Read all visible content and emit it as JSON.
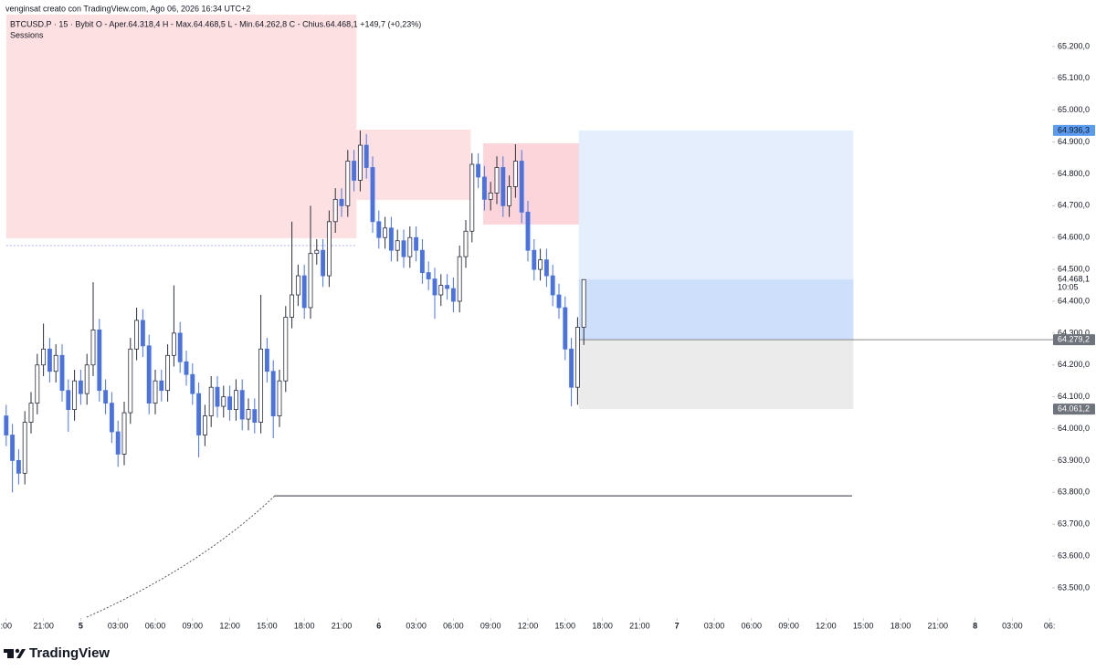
{
  "header": {
    "attribution": "venginsat creato con TradingView.com, Ago 06, 2026 16:34 UTC+2",
    "symbol_line": "BTCUSD.P · 15 · Bybit   O - Aper.64.318,4   H - Max.64.468,5   L - Min.64.262,8   C - Chius.64.468,1   +149,7 (+0,23%)",
    "indicator": "Sessions"
  },
  "footer": {
    "brand": "TradingView"
  },
  "chart_data": {
    "type": "candlestick",
    "up_color": "#ffffff",
    "up_border": "#2a2e39",
    "down_color": "#4a73e0",
    "xlim": [
      -0.5,
      84.06
    ],
    "ylim": [
      63411,
      65346
    ],
    "xticks": [
      {
        "value": 0,
        "label": ":00"
      },
      {
        "value": 3,
        "label": "21:00"
      },
      {
        "value": 6,
        "label": "5"
      },
      {
        "value": 9,
        "label": "03:00"
      },
      {
        "value": 12,
        "label": "06:00"
      },
      {
        "value": 15,
        "label": "09:00"
      },
      {
        "value": 18,
        "label": "12:00"
      },
      {
        "value": 21,
        "label": "15:00"
      },
      {
        "value": 24,
        "label": "18:00"
      },
      {
        "value": 27,
        "label": "21:00"
      },
      {
        "value": 30,
        "label": "6"
      },
      {
        "value": 33,
        "label": "03:00"
      },
      {
        "value": 36,
        "label": "06:00"
      },
      {
        "value": 39,
        "label": "09:00"
      },
      {
        "value": 42,
        "label": "12:00"
      },
      {
        "value": 45,
        "label": "15:00"
      },
      {
        "value": 48,
        "label": "18:00"
      },
      {
        "value": 51,
        "label": "21:00"
      },
      {
        "value": 54,
        "label": "7"
      },
      {
        "value": 57,
        "label": "03:00"
      },
      {
        "value": 60,
        "label": "06:00"
      },
      {
        "value": 63,
        "label": "09:00"
      },
      {
        "value": 66,
        "label": "12:00"
      },
      {
        "value": 69,
        "label": "15:00"
      },
      {
        "value": 72,
        "label": "18:00"
      },
      {
        "value": 75,
        "label": "21:00"
      },
      {
        "value": 78,
        "label": "8"
      },
      {
        "value": 81,
        "label": "03:00"
      },
      {
        "value": 84,
        "label": "06:"
      }
    ],
    "yticks": [
      {
        "value": 63500,
        "label": "63.500,0"
      },
      {
        "value": 63600,
        "label": "63.600,0"
      },
      {
        "value": 63700,
        "label": "63.700,0"
      },
      {
        "value": 63800,
        "label": "63.800,0"
      },
      {
        "value": 63900,
        "label": "63.900,0"
      },
      {
        "value": 64000,
        "label": "64.000,0"
      },
      {
        "value": 64100,
        "label": "64.100,0"
      },
      {
        "value": 64200,
        "label": "64.200,0"
      },
      {
        "value": 64300,
        "label": "64.300,0"
      },
      {
        "value": 64400,
        "label": "64.400,0"
      },
      {
        "value": 64500,
        "label": "64.500,0"
      },
      {
        "value": 64600,
        "label": "64.600,0"
      },
      {
        "value": 64700,
        "label": "64.700,0"
      },
      {
        "value": 64800,
        "label": "64.800,0"
      },
      {
        "value": 64900,
        "label": "64.900,0"
      },
      {
        "value": 65000,
        "label": "65.000,0"
      },
      {
        "value": 65100,
        "label": "65.100,0"
      },
      {
        "value": 65200,
        "label": "65.200,0"
      }
    ],
    "zones": [
      {
        "start": 0,
        "end": 28.2,
        "top": 65300,
        "bottom": 64598,
        "color": "#fde0e2"
      },
      {
        "start": 28.2,
        "end": 37.4,
        "top": 64939,
        "bottom": 64718,
        "color": "#fde0e2"
      },
      {
        "start": 38.4,
        "end": 67.1,
        "top": 64896,
        "bottom": 64641,
        "color": "#fbd5da"
      }
    ],
    "position": {
      "start": 46.1,
      "end": 68.2,
      "target": 64936.3,
      "entry": 64279.2,
      "stop": 64061.2,
      "target_color": "#e4eefd",
      "profit_color": "#cddffb",
      "stop_color": "#ebebeb"
    },
    "levels": [
      {
        "value": 63789,
        "start": 21.6,
        "end": 68.1,
        "color": "#2a2e39",
        "dashed": false
      },
      {
        "value": 64575,
        "start": 0,
        "end": 28.2,
        "color": "#a9b3e0",
        "dashed": true
      }
    ],
    "price_labels": [
      {
        "value": 64936.3,
        "label": "64.936,3",
        "bg": "#5b9cf0",
        "fg": "#131722"
      },
      {
        "value": 64468.1,
        "label": "64.468,1",
        "sub": "10:05",
        "bg": "#ffffff",
        "fg": "#131722"
      },
      {
        "value": 64279.2,
        "label": "64.279,2",
        "bg": "#6f737c",
        "fg": "#ffffff"
      },
      {
        "value": 64061.2,
        "label": "64.061,2",
        "bg": "#6f737c",
        "fg": "#ffffff"
      }
    ],
    "x": [
      0,
      0.5,
      1,
      1.5,
      2,
      2.5,
      3,
      3.5,
      4,
      4.5,
      5,
      5.5,
      6,
      6.5,
      7,
      7.5,
      8,
      8.5,
      9,
      9.5,
      10,
      10.5,
      11,
      11.5,
      12,
      12.5,
      13,
      13.5,
      14,
      14.5,
      15,
      15.5,
      16,
      16.5,
      17,
      17.5,
      18,
      18.5,
      19,
      19.5,
      20,
      20.5,
      21,
      21.5,
      22,
      22.5,
      23,
      23.5,
      24,
      24.5,
      25,
      25.5,
      26,
      26.5,
      27,
      27.5,
      28,
      28.5,
      29,
      29.5,
      30,
      30.5,
      31,
      31.5,
      32,
      32.5,
      33,
      33.5,
      34,
      34.5,
      35,
      35.5,
      36,
      36.5,
      37,
      37.5,
      38,
      38.5,
      39,
      39.5,
      40,
      40.5,
      41,
      41.5,
      42,
      42.5,
      43,
      43.5,
      44,
      44.5,
      45,
      45.5,
      46,
      46.5
    ],
    "open": [
      64040,
      63980,
      63900,
      63860,
      64020,
      64080,
      64200,
      64250,
      64180,
      64230,
      64120,
      64060,
      64150,
      64110,
      64200,
      64310,
      64120,
      64080,
      63990,
      63920,
      64050,
      64250,
      64340,
      64260,
      64080,
      64150,
      64120,
      64230,
      64300,
      64210,
      64170,
      64110,
      63980,
      64040,
      64130,
      64070,
      64100,
      64060,
      64120,
      64030,
      64060,
      64020,
      64250,
      64180,
      64040,
      64150,
      64350,
      64420,
      64480,
      64380,
      64550,
      64560,
      64480,
      64650,
      64720,
      64700,
      64840,
      64780,
      64890,
      64820,
      64650,
      64600,
      64630,
      64560,
      64590,
      64540,
      64600,
      64560,
      64490,
      64470,
      64420,
      64450,
      64440,
      64400,
      64540,
      64620,
      64830,
      64790,
      64720,
      64740,
      64820,
      64700,
      64760,
      64840,
      64680,
      64560,
      64500,
      64530,
      64480,
      64420,
      64380,
      64250,
      64130,
      64318.4
    ],
    "high": [
      64075,
      64015,
      63935,
      64055,
      64115,
      64235,
      64330,
      64285,
      64265,
      64265,
      64155,
      64185,
      64185,
      64235,
      64460,
      64345,
      64155,
      64115,
      64025,
      64085,
      64285,
      64380,
      64375,
      64295,
      64185,
      64185,
      64265,
      64450,
      64335,
      64245,
      64205,
      64145,
      64075,
      64165,
      64165,
      64135,
      64135,
      64155,
      64155,
      64095,
      64095,
      64420,
      64285,
      64215,
      64185,
      64385,
      64650,
      64515,
      64515,
      64700,
      64595,
      64595,
      64685,
      64755,
      64755,
      64875,
      64875,
      64936,
      64925,
      64855,
      64685,
      64665,
      64665,
      64625,
      64625,
      64635,
      64635,
      64595,
      64525,
      64505,
      64485,
      64485,
      64475,
      64575,
      64655,
      64865,
      64865,
      64825,
      64775,
      64855,
      64855,
      64795,
      64893,
      64875,
      64715,
      64595,
      64565,
      64565,
      64515,
      64455,
      64415,
      64285,
      64350,
      64468.5
    ],
    "low": [
      63945,
      63800,
      63825,
      63825,
      63985,
      64045,
      64165,
      64145,
      64145,
      64085,
      63990,
      64025,
      64075,
      64075,
      64165,
      64085,
      64045,
      63955,
      63880,
      63885,
      64015,
      64215,
      64225,
      64045,
      64045,
      64085,
      64085,
      64195,
      64175,
      64135,
      64075,
      63910,
      63945,
      64005,
      64035,
      64035,
      64025,
      64025,
      63995,
      63995,
      63985,
      63985,
      64145,
      63970,
      64005,
      64115,
      64315,
      64385,
      64345,
      64345,
      64515,
      64445,
      64445,
      64615,
      64665,
      64665,
      64745,
      64745,
      64785,
      64615,
      64565,
      64565,
      64525,
      64525,
      64505,
      64505,
      64525,
      64455,
      64435,
      64345,
      64385,
      64405,
      64365,
      64365,
      64505,
      64585,
      64755,
      64685,
      64685,
      64705,
      64665,
      64665,
      64725,
      64645,
      64525,
      64465,
      64465,
      64445,
      64385,
      64345,
      64215,
      64070,
      64075,
      64262.8
    ],
    "close": [
      63980,
      63900,
      63860,
      64020,
      64080,
      64200,
      64250,
      64180,
      64230,
      64120,
      64060,
      64150,
      64110,
      64200,
      64310,
      64120,
      64080,
      63990,
      63920,
      64050,
      64250,
      64340,
      64260,
      64080,
      64150,
      64120,
      64230,
      64300,
      64210,
      64170,
      64110,
      63980,
      64040,
      64130,
      64070,
      64100,
      64060,
      64120,
      64030,
      64060,
      64020,
      64250,
      64180,
      64040,
      64150,
      64350,
      64420,
      64480,
      64380,
      64550,
      64560,
      64480,
      64650,
      64720,
      64700,
      64840,
      64780,
      64890,
      64820,
      64650,
      64600,
      64630,
      64560,
      64590,
      64540,
      64600,
      64560,
      64490,
      64470,
      64420,
      64450,
      64440,
      64400,
      64540,
      64620,
      64830,
      64790,
      64720,
      64740,
      64820,
      64700,
      64760,
      64840,
      64680,
      64560,
      64500,
      64530,
      64480,
      64420,
      64380,
      64250,
      64130,
      64318.4,
      64468.1
    ]
  }
}
